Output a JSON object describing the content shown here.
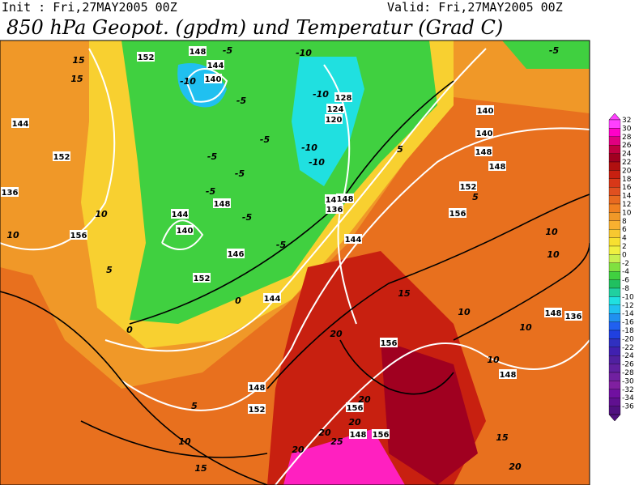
{
  "header": {
    "init": "Init : Fri,27MAY2005 00Z",
    "valid": "Valid: Fri,27MAY2005 00Z",
    "title": "850 hPa Geopot. (gpdm) und Temperatur (Grad C)"
  },
  "colorbar": {
    "levels": [
      32,
      30,
      28,
      26,
      24,
      22,
      20,
      18,
      16,
      14,
      12,
      10,
      8,
      6,
      4,
      2,
      0,
      -2,
      -4,
      -6,
      -8,
      -10,
      -12,
      -14,
      -16,
      -18,
      -20,
      -22,
      -24,
      -26,
      -28,
      -30,
      -32,
      -34,
      -36
    ],
    "colors": [
      "#ff40ff",
      "#ff00c8",
      "#e00080",
      "#c00040",
      "#a00020",
      "#b01010",
      "#c82010",
      "#d83818",
      "#e05020",
      "#e86a20",
      "#f08020",
      "#f09828",
      "#f8b030",
      "#f8c830",
      "#f8e030",
      "#f0f040",
      "#c8f050",
      "#80e040",
      "#40d040",
      "#20c060",
      "#20d0a0",
      "#20e0e0",
      "#20c0f0",
      "#2090f0",
      "#2060f0",
      "#2040e0",
      "#3030c0",
      "#4020b0",
      "#5020a0",
      "#6020a0",
      "#7020a0",
      "#8020a0",
      "#7010a0",
      "#601090",
      "#501080"
    ]
  },
  "geopotential_labels": [
    152,
    148,
    144,
    140,
    128,
    124,
    120,
    144,
    136,
    140,
    144,
    148,
    152,
    152,
    140,
    148,
    144,
    136,
    144,
    148,
    152,
    156,
    148,
    146,
    148,
    144,
    140,
    156,
    148,
    152,
    156,
    156,
    156,
    148,
    148,
    136
  ],
  "temperature_labels": [
    -5,
    -10,
    -5,
    -10,
    -10,
    -5,
    -10,
    -10,
    -5,
    -5,
    -5,
    -5,
    -5,
    -5,
    15,
    15,
    10,
    10,
    5,
    0,
    0,
    5,
    5,
    10,
    10,
    15,
    10,
    10,
    10,
    20,
    20,
    20,
    20,
    25,
    20,
    15,
    20,
    15,
    10,
    5
  ]
}
